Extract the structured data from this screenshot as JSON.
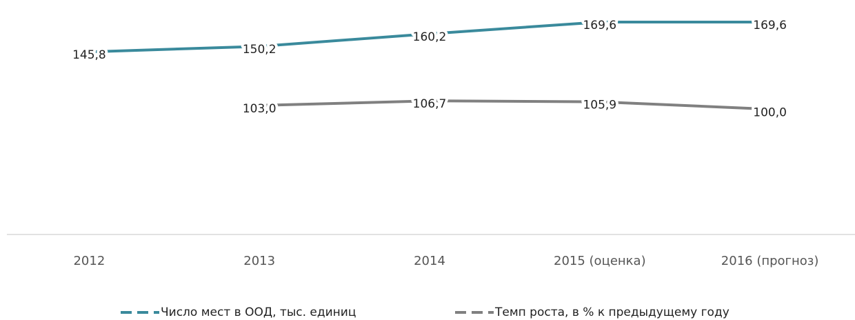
{
  "chart_data": {
    "type": "line",
    "categories": [
      "2012",
      "2013",
      "2014",
      "2015 (оценка)",
      "2016 (прогноз)"
    ],
    "series": [
      {
        "name": "Число мест в ООД, тыс. единиц",
        "color": "#3a8a9c",
        "values": [
          145.8,
          150.2,
          160.2,
          169.6,
          169.6
        ],
        "value_labels": [
          "145,8",
          "150,2",
          "160,2",
          "169,6",
          "169,6"
        ]
      },
      {
        "name": "Темп роста, в % к предыдущему году",
        "color": "#808080",
        "values": [
          null,
          103.0,
          106.7,
          105.9,
          100.0
        ],
        "value_labels": [
          null,
          "103,0",
          "106,7",
          "105,9",
          "100,0"
        ]
      }
    ],
    "ylim": [
      0,
      185
    ],
    "legend": "bottom"
  }
}
